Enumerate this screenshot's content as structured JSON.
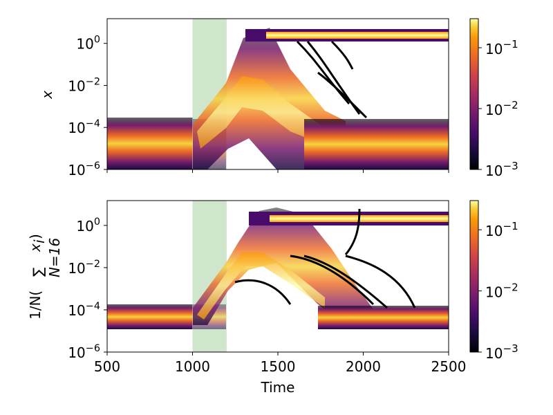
{
  "chart_data": [
    {
      "type": "heatmap",
      "title": "",
      "xlabel": "",
      "ylabel": "x",
      "xlim": [
        500,
        2500
      ],
      "ylim": [
        1e-06,
        15
      ],
      "yscale": "log",
      "highlight_band": {
        "x": [
          1000,
          1200
        ],
        "color": "#cfe6cd"
      },
      "xticks": [
        500,
        1000,
        1500,
        2000,
        2500
      ],
      "yticks": [
        {
          "value": 1e-06,
          "base": "10",
          "exp": "−6"
        },
        {
          "value": 0.0001,
          "base": "10",
          "exp": "−4"
        },
        {
          "value": 0.01,
          "base": "10",
          "exp": "−2"
        },
        {
          "value": 1,
          "base": "10",
          "exp": "0"
        }
      ],
      "colorbar": {
        "scale": "log",
        "range": [
          0.001,
          0.3
        ],
        "cmap": "inferno",
        "ticks": [
          {
            "value": 0.001,
            "base": "10",
            "exp": "−3"
          },
          {
            "value": 0.01,
            "base": "10",
            "exp": "−2"
          },
          {
            "value": 0.1,
            "base": "10",
            "exp": "−1"
          }
        ]
      }
    },
    {
      "type": "heatmap",
      "title": "",
      "xlabel": "Time",
      "ylabel": "1/N(∑ x_i) N=16",
      "ylabel_parts": {
        "prefix": "1/N(",
        "sum": "∑",
        "sub": "N=16",
        "var": "x",
        "var_sub": "i",
        "suffix": ")"
      },
      "xlim": [
        500,
        2500
      ],
      "ylim": [
        1e-06,
        15
      ],
      "yscale": "log",
      "highlight_band": {
        "x": [
          1000,
          1200
        ],
        "color": "#cfe6cd"
      },
      "xticks": [
        {
          "value": 500,
          "label": "500"
        },
        {
          "value": 1000,
          "label": "1000"
        },
        {
          "value": 1500,
          "label": "1500"
        },
        {
          "value": 2000,
          "label": "2000"
        },
        {
          "value": 2500,
          "label": "2500"
        }
      ],
      "yticks": [
        {
          "value": 1e-06,
          "base": "10",
          "exp": "−6"
        },
        {
          "value": 0.0001,
          "base": "10",
          "exp": "−4"
        },
        {
          "value": 0.01,
          "base": "10",
          "exp": "−2"
        },
        {
          "value": 1,
          "base": "10",
          "exp": "0"
        }
      ],
      "colorbar": {
        "scale": "log",
        "range": [
          0.001,
          0.3
        ],
        "cmap": "inferno",
        "ticks": [
          {
            "value": 0.001,
            "base": "10",
            "exp": "−3"
          },
          {
            "value": 0.01,
            "base": "10",
            "exp": "−2"
          },
          {
            "value": 0.1,
            "base": "10",
            "exp": "−1"
          }
        ]
      }
    }
  ]
}
